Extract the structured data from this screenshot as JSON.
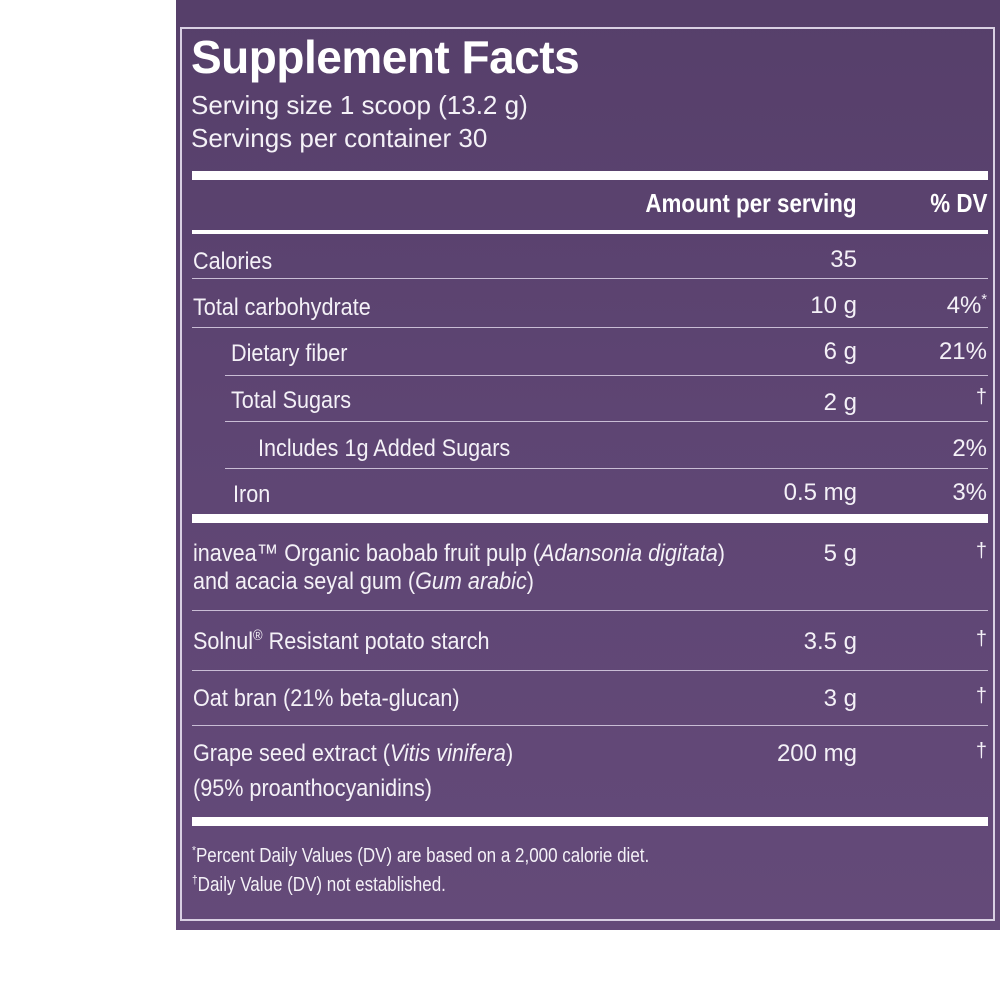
{
  "panel": {
    "title": "Supplement Facts",
    "serving_size": "Serving size 1 scoop (13.2 g)",
    "servings_per_container": "Servings per container 30"
  },
  "header": {
    "amount": "Amount per serving",
    "dv": "% DV"
  },
  "nutrients": [
    {
      "name": "Calories",
      "amount": "35",
      "dv": ""
    },
    {
      "name": "Total carbohydrate",
      "amount": "10 g",
      "dv": "4%",
      "dv_mark": "*"
    },
    {
      "name": "Dietary fiber",
      "amount": "6 g",
      "dv": "21%"
    },
    {
      "name": "Total Sugars",
      "amount": "2 g",
      "dv": "†"
    },
    {
      "name": "Includes 1g Added Sugars",
      "amount": "",
      "dv": "2%"
    },
    {
      "name": "Iron",
      "amount": "0.5 mg",
      "dv": "3%"
    }
  ],
  "ingredients": [
    {
      "line1_a": "inavea™ Organic baobab fruit pulp (",
      "line1_i": "Adansonia digitata",
      "line1_b": ")",
      "line2_a": "and acacia seyal gum (",
      "line2_i": "Gum arabic",
      "line2_b": ")",
      "amount": "5 g",
      "dv": "†"
    },
    {
      "name": "Solnul",
      "mark": "®",
      "rest": " Resistant potato starch",
      "amount": "3.5 g",
      "dv": "†"
    },
    {
      "name": "Oat bran (21% beta-glucan)",
      "amount": "3 g",
      "dv": "†"
    },
    {
      "line1_a": "Grape seed extract (",
      "line1_i": "Vitis vinifera",
      "line1_b": ")",
      "line2": "(95% proanthocyanidins)",
      "amount": "200 mg",
      "dv": "†"
    }
  ],
  "footnotes": {
    "mark1": "*",
    "text1": "Percent Daily Values (DV) are based on a 2,000 calorie diet.",
    "mark2": "†",
    "text2": "Daily Value (DV) not established."
  },
  "colors": {
    "panel_bg": "#5e4573",
    "text": "#f4f1f7",
    "rule": "#ffffff"
  }
}
